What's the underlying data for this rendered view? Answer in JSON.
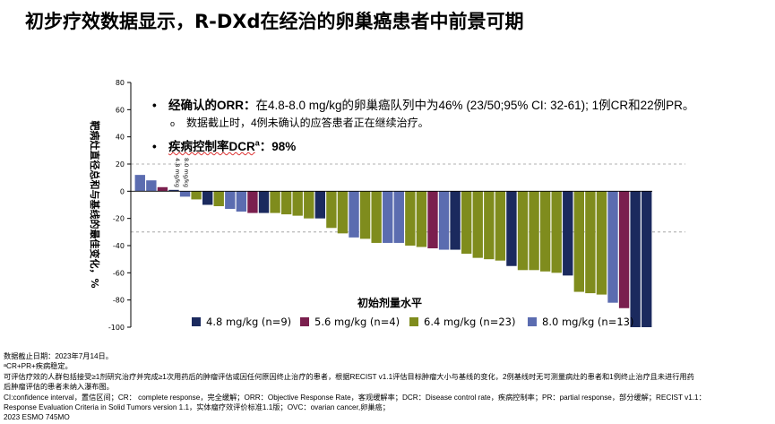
{
  "title": "初步疗效数据显示，R-DXd在经治的卵巢癌患者中前景可期",
  "bullets": {
    "b1_label": "经确认的ORR：",
    "b1_text": "在4.8-8.0 mg/kg的卵巢癌队列中为46% (23/50;95% CI: 32-61); 1例CR和22例PR。",
    "b2_text": "数据截止时，4例未确认的应答患者正在继续治疗。",
    "b3_label": "疾病控制率DCR",
    "b3_sup": "a",
    "b3_text": "：98%"
  },
  "footer": {
    "line1": "数据截止日期：2023年7月14日。",
    "line2": "ᵃCR+PR+疾病稳定。",
    "line3": "可评估疗效的人群包括接受≥1剂研究治疗并完成≥1次用药后的肿瘤评估或因任何原因终止治疗的患者，根据RECIST v1.1评估目标肿瘤大小与基线的变化，2例基线时无可测量病灶的患者和1例终止治疗且未进行用药",
    "line4": "后肿瘤评估的患者未纳入瀑布图。",
    "line5": "CI:confidence interval，置信区间；CR： complete response，完全缓解；ORR：Objective Response Rate，客观缓解率；DCR：Disease control rate，疾病控制率；PR：partial response，部分缓解；RECIST v1.1：",
    "line6": "Response Evaluation Criteria in Solid Tumors version 1.1，实体瘤疗效评价标准1.1版；OVC：ovarian cancer,卵巢癌；",
    "line7": "2023  ESMO 745MO"
  },
  "chart_data": {
    "type": "bar",
    "subtype": "waterfall",
    "ylabel": "靶病灶直径总和与基线的最佳变化，%",
    "xlabel": "初始剂量水平",
    "ylim": [
      -100,
      80
    ],
    "yticks": [
      80,
      60,
      40,
      20,
      0,
      -20,
      -40,
      -60,
      -80,
      -100
    ],
    "ytick_labels": [
      "80",
      "60",
      "40",
      "20",
      "0",
      "-20",
      "-40",
      "-60",
      "-80",
      "-100"
    ],
    "reference_lines": [
      20,
      -30
    ],
    "annotations": [
      "4.8 mg/kg",
      "8.0 mg/kg"
    ],
    "series": [
      {
        "name": "4.8 mg/kg (n=9)",
        "color": "#1b2a5e"
      },
      {
        "name": "5.6 mg/kg (n=4)",
        "color": "#7a1f4e"
      },
      {
        "name": "6.4 mg/kg (n=23)",
        "color": "#7f8c1d"
      },
      {
        "name": "8.0 mg/kg (n=13)",
        "color": "#5b6cb0"
      }
    ],
    "bars": [
      {
        "value": 12,
        "dose": 3
      },
      {
        "value": 8,
        "dose": 3
      },
      {
        "value": 3,
        "dose": 1
      },
      {
        "value": 1,
        "dose": 0
      },
      {
        "value": -4,
        "dose": 3
      },
      {
        "value": -6,
        "dose": 2
      },
      {
        "value": -10,
        "dose": 0
      },
      {
        "value": -11,
        "dose": 2
      },
      {
        "value": -13,
        "dose": 3
      },
      {
        "value": -15,
        "dose": 3
      },
      {
        "value": -16,
        "dose": 1
      },
      {
        "value": -16,
        "dose": 0
      },
      {
        "value": -16,
        "dose": 2
      },
      {
        "value": -17,
        "dose": 2
      },
      {
        "value": -18,
        "dose": 2
      },
      {
        "value": -20,
        "dose": 2
      },
      {
        "value": -20,
        "dose": 0
      },
      {
        "value": -27,
        "dose": 2
      },
      {
        "value": -31,
        "dose": 2
      },
      {
        "value": -34,
        "dose": 3
      },
      {
        "value": -35,
        "dose": 2
      },
      {
        "value": -38,
        "dose": 2
      },
      {
        "value": -38,
        "dose": 3
      },
      {
        "value": -38,
        "dose": 3
      },
      {
        "value": -40,
        "dose": 2
      },
      {
        "value": -41,
        "dose": 2
      },
      {
        "value": -42,
        "dose": 1
      },
      {
        "value": -43,
        "dose": 3
      },
      {
        "value": -43,
        "dose": 0
      },
      {
        "value": -46,
        "dose": 2
      },
      {
        "value": -49,
        "dose": 2
      },
      {
        "value": -50,
        "dose": 2
      },
      {
        "value": -51,
        "dose": 2
      },
      {
        "value": -55,
        "dose": 0
      },
      {
        "value": -58,
        "dose": 2
      },
      {
        "value": -58,
        "dose": 2
      },
      {
        "value": -59,
        "dose": 2
      },
      {
        "value": -60,
        "dose": 2
      },
      {
        "value": -62,
        "dose": 0
      },
      {
        "value": -74,
        "dose": 2
      },
      {
        "value": -75,
        "dose": 2
      },
      {
        "value": -76,
        "dose": 2
      },
      {
        "value": -82,
        "dose": 3
      },
      {
        "value": -86,
        "dose": 1
      },
      {
        "value": -100,
        "dose": 0
      },
      {
        "value": -100,
        "dose": 0
      }
    ]
  }
}
